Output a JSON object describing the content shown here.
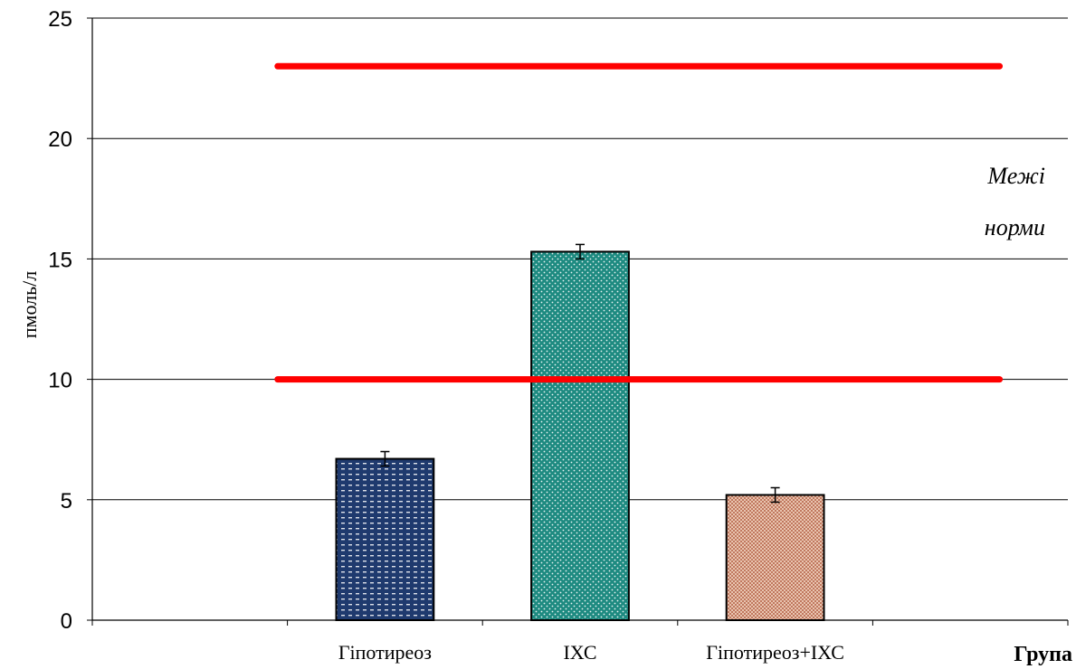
{
  "chart_data": {
    "type": "bar",
    "categories": [
      "",
      "Гіпотиреоз",
      "ІХС",
      "Гіпотиреоз+ІХС",
      ""
    ],
    "values": [
      null,
      6.7,
      15.3,
      5.2,
      null
    ],
    "errors": [
      null,
      0.3,
      0.3,
      0.3,
      null
    ],
    "bar_colors": [
      null,
      "#1f3a6e",
      "#1d8a80",
      "#d8a088",
      null
    ],
    "xlabel": "Група",
    "ylabel": "пмоль/л",
    "ylim": [
      0,
      25
    ],
    "yticks": [
      0,
      5,
      10,
      15,
      20,
      25
    ],
    "grid": true,
    "reference_lines": [
      {
        "y": 23,
        "color": "#ff0000"
      },
      {
        "y": 10,
        "color": "#ff0000"
      }
    ],
    "annotation_lines": [
      "Межі",
      "норми"
    ]
  }
}
